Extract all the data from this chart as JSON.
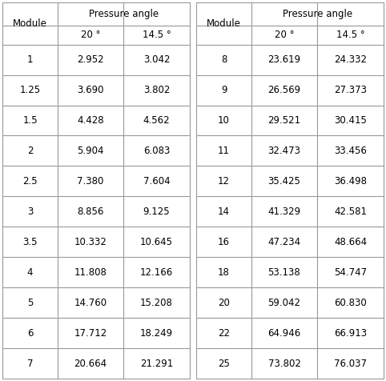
{
  "left_table": {
    "modules": [
      "1",
      "1.25",
      "1.5",
      "2",
      "2.5",
      "3",
      "3.5",
      "4",
      "5",
      "6",
      "7"
    ],
    "angle_20": [
      "2.952",
      "3.690",
      "4.428",
      "5.904",
      "7.380",
      "8.856",
      "10.332",
      "11.808",
      "14.760",
      "17.712",
      "20.664"
    ],
    "angle_145": [
      "3.042",
      "3.802",
      "4.562",
      "6.083",
      "7.604",
      "9.125",
      "10.645",
      "12.166",
      "15.208",
      "18.249",
      "21.291"
    ]
  },
  "right_table": {
    "modules": [
      "8",
      "9",
      "10",
      "11",
      "12",
      "14",
      "16",
      "18",
      "20",
      "22",
      "25"
    ],
    "angle_20": [
      "23.619",
      "26.569",
      "29.521",
      "32.473",
      "35.425",
      "41.329",
      "47.234",
      "53.138",
      "59.042",
      "64.946",
      "73.802"
    ],
    "angle_145": [
      "24.332",
      "27.373",
      "30.415",
      "33.456",
      "36.498",
      "42.581",
      "48.664",
      "54.747",
      "60.830",
      "66.913",
      "76.037"
    ]
  },
  "header_pressure_angle": "Pressure angle",
  "header_module": "Module",
  "header_20": "20 °",
  "header_145": "14.5 °",
  "bg_color": "#ffffff",
  "line_color": "#999999",
  "text_color": "#000000",
  "font_size": 8.5,
  "fig_width": 4.82,
  "fig_height": 4.76,
  "dpi": 100
}
